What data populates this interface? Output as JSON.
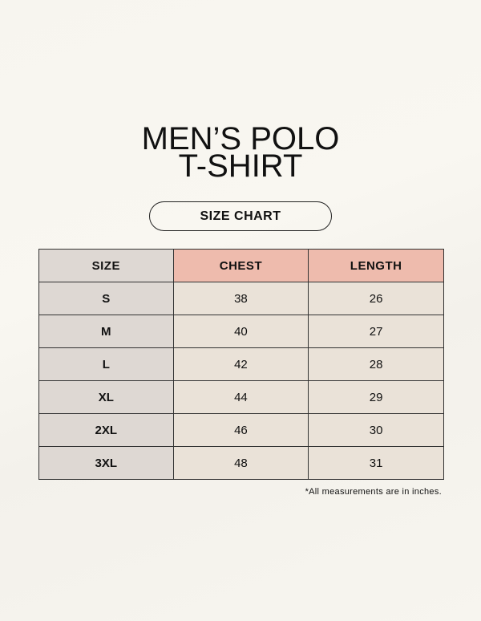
{
  "title": {
    "line1": "MEN’S POLO",
    "line2": "T-SHIRT"
  },
  "badge": "SIZE CHART",
  "table": {
    "headers": [
      "SIZE",
      "CHEST",
      "LENGTH"
    ],
    "rows": [
      [
        "S",
        "38",
        "26"
      ],
      [
        "M",
        "40",
        "27"
      ],
      [
        "L",
        "42",
        "28"
      ],
      [
        "XL",
        "44",
        "29"
      ],
      [
        "2XL",
        "46",
        "30"
      ],
      [
        "3XL",
        "48",
        "31"
      ]
    ]
  },
  "note": "*All measurements are in inches.",
  "colors": {
    "size_column": "#ded8d3",
    "header_accent": "#eebbad",
    "value_cells": "#eae2d8",
    "background": "#f7f5ef"
  }
}
